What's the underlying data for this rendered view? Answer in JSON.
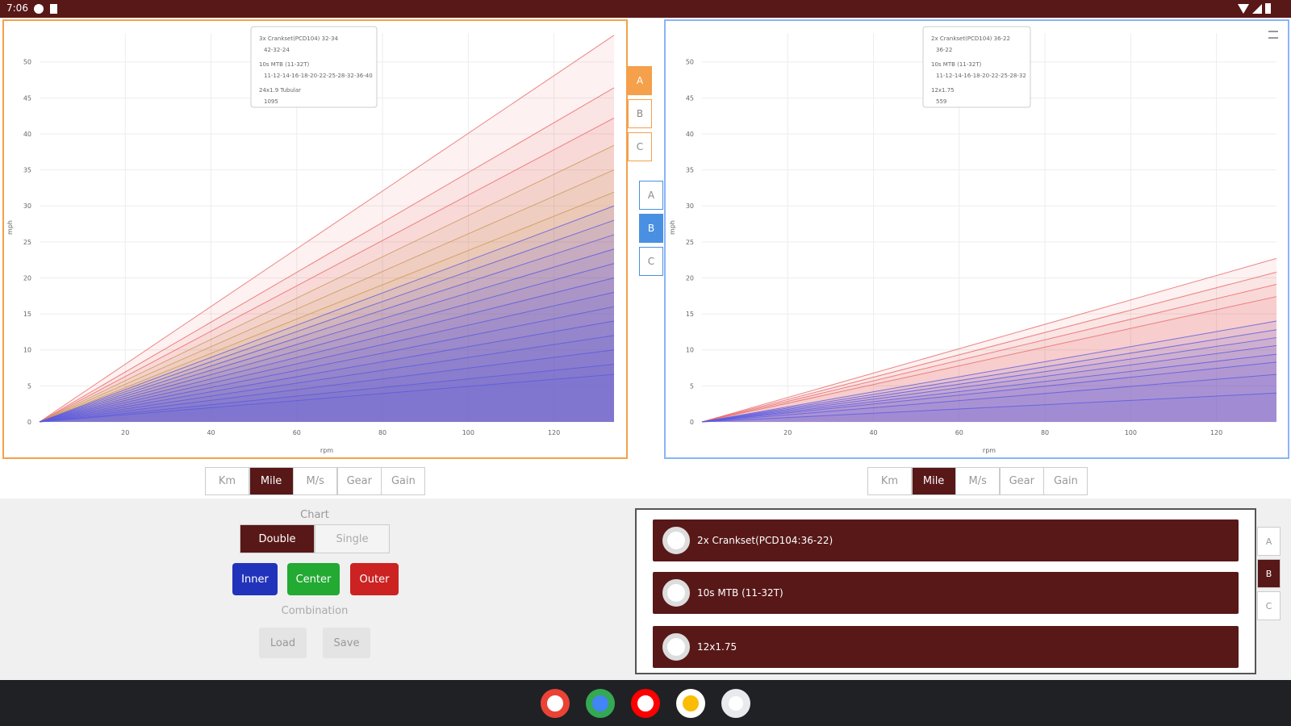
{
  "status_bar": {
    "time": "7:06"
  },
  "chart_data": [
    {
      "type": "line",
      "xlabel": "rpm",
      "ylabel": "mph",
      "annotations": [
        "3x Crankset(PCD104) 32-34",
        "42-32-24",
        "10s MTB (11-32T)",
        "11-12-14-16-18-20-22-25-28-32-36-40",
        "24x1.9 Tubular",
        "1095"
      ],
      "x": [
        0,
        134
      ],
      "xlim": [
        0,
        134
      ],
      "ylim": [
        0,
        54
      ],
      "xticks": [
        20,
        40,
        60,
        80,
        100,
        120
      ],
      "yticks": [
        0,
        5,
        10,
        15,
        20,
        25,
        30,
        35,
        40,
        45,
        50
      ],
      "grid": true,
      "series": [
        {
          "color": "#e86868",
          "values": [
            0,
            53.7
          ]
        },
        {
          "color": "#e86868",
          "values": [
            0,
            46.4
          ]
        },
        {
          "color": "#e86868",
          "values": [
            0,
            42.2
          ]
        },
        {
          "color": "#c89a5a",
          "values": [
            0,
            38.4
          ]
        },
        {
          "color": "#c89a5a",
          "values": [
            0,
            35
          ]
        },
        {
          "color": "#c89a5a",
          "values": [
            0,
            31.9
          ]
        },
        {
          "color": "#5a5ae0",
          "values": [
            0,
            30
          ]
        },
        {
          "color": "#5a5ae0",
          "values": [
            0,
            28
          ]
        },
        {
          "color": "#5a5ae0",
          "values": [
            0,
            26
          ]
        },
        {
          "color": "#5a5ae0",
          "values": [
            0,
            24
          ]
        },
        {
          "color": "#5a5ae0",
          "values": [
            0,
            22
          ]
        },
        {
          "color": "#5a5ae0",
          "values": [
            0,
            20
          ]
        },
        {
          "color": "#5a5ae0",
          "values": [
            0,
            18
          ]
        },
        {
          "color": "#5a5ae0",
          "values": [
            0,
            16
          ]
        },
        {
          "color": "#5a5ae0",
          "values": [
            0,
            14
          ]
        },
        {
          "color": "#5a5ae0",
          "values": [
            0,
            12
          ]
        },
        {
          "color": "#5a5ae0",
          "values": [
            0,
            10
          ]
        },
        {
          "color": "#5a5ae0",
          "values": [
            0,
            8
          ]
        },
        {
          "color": "#5a5ae0",
          "values": [
            0,
            6.6
          ]
        }
      ]
    },
    {
      "type": "line",
      "xlabel": "rpm",
      "ylabel": "mph",
      "annotations": [
        "2x Crankset(PCD104) 36-22",
        "36-22",
        "10s MTB (11-32T)",
        "11-12-14-16-18-20-22-25-28-32",
        "12x1.75",
        "559"
      ],
      "x": [
        0,
        134
      ],
      "xlim": [
        0,
        134
      ],
      "ylim": [
        0,
        54
      ],
      "xticks": [
        20,
        40,
        60,
        80,
        100,
        120
      ],
      "yticks": [
        0,
        5,
        10,
        15,
        20,
        25,
        30,
        35,
        40,
        45,
        50
      ],
      "grid": true,
      "series": [
        {
          "color": "#e86868",
          "values": [
            0,
            22.7
          ]
        },
        {
          "color": "#e86868",
          "values": [
            0,
            20.8
          ]
        },
        {
          "color": "#e86868",
          "values": [
            0,
            19.1
          ]
        },
        {
          "color": "#e86868",
          "values": [
            0,
            17.4
          ]
        },
        {
          "color": "#5a5ae0",
          "values": [
            0,
            14
          ]
        },
        {
          "color": "#5a5ae0",
          "values": [
            0,
            12.8
          ]
        },
        {
          "color": "#5a5ae0",
          "values": [
            0,
            11.7
          ]
        },
        {
          "color": "#5a5ae0",
          "values": [
            0,
            10.6
          ]
        },
        {
          "color": "#5a5ae0",
          "values": [
            0,
            9.4
          ]
        },
        {
          "color": "#5a5ae0",
          "values": [
            0,
            8.3
          ]
        },
        {
          "color": "#5a5ae0",
          "values": [
            0,
            6.6
          ]
        },
        {
          "color": "#5a5ae0",
          "values": [
            0,
            4
          ]
        }
      ]
    }
  ],
  "chart_tabs": [
    {
      "labels": [
        "A",
        "B",
        "C"
      ],
      "selected": 0
    },
    {
      "labels": [
        "A",
        "B",
        "C"
      ],
      "selected": 1
    }
  ],
  "unit_buttons": [
    {
      "labels": [
        "Km",
        "Mile",
        "M/s",
        "Gear",
        "Gain"
      ],
      "selected": 1
    },
    {
      "labels": [
        "Km",
        "Mile",
        "M/s",
        "Gear",
        "Gain"
      ],
      "selected": 1
    }
  ],
  "controls": {
    "chart_label": "Chart",
    "chart_modes": [
      "Double",
      "Single"
    ],
    "selected_mode": 0,
    "ring_buttons": [
      "Inner",
      "Center",
      "Outer"
    ],
    "combination_label": "Combination",
    "actions": [
      "Load",
      "Save"
    ]
  },
  "components": {
    "items": [
      "2x Crankset(PCD104:36-22)",
      "10s MTB (11-32T)",
      "12x1.75"
    ],
    "tabs": [
      "A",
      "B",
      "C"
    ],
    "selected_tab": 1
  }
}
